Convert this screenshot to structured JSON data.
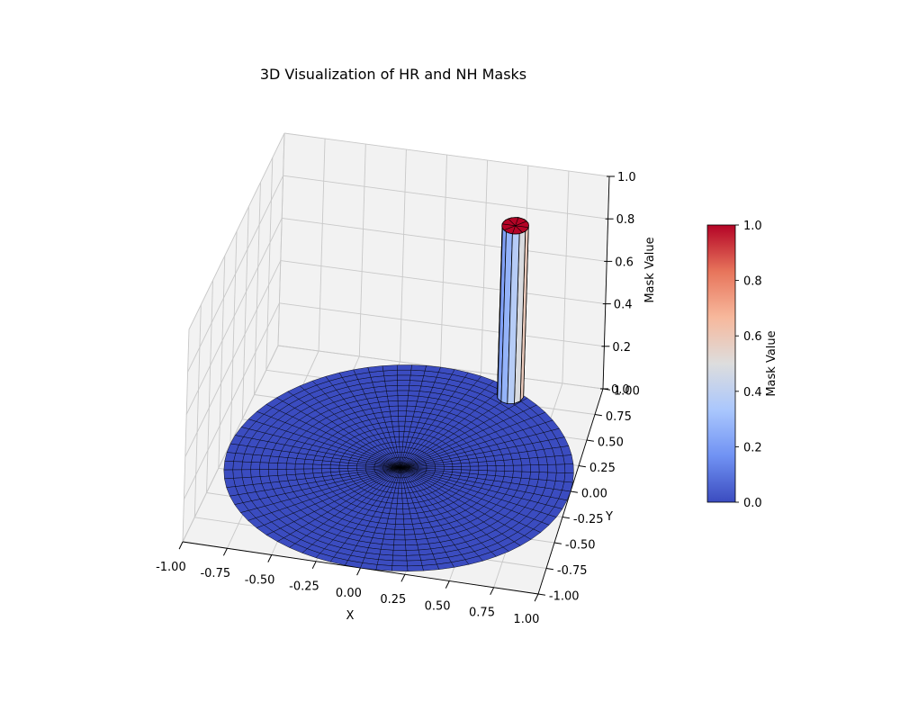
{
  "chart_data": {
    "type": "surface3d",
    "title": "3D Visualization of HR and NH Masks",
    "xlabel": "X",
    "ylabel": "Y",
    "zlabel": "Mask Value",
    "xlim": [
      -1.0,
      1.0
    ],
    "ylim": [
      -1.0,
      1.0
    ],
    "zlim": [
      0.0,
      1.0
    ],
    "x_ticks": [
      "-1.00",
      "-0.75",
      "-0.50",
      "-0.25",
      "0.00",
      "0.25",
      "0.50",
      "0.75",
      "1.00"
    ],
    "y_ticks": [
      "-1.00",
      "-0.75",
      "-0.50",
      "-0.25",
      "0.00",
      "0.25",
      "0.50",
      "0.75",
      "1.00"
    ],
    "z_ticks": [
      "0.0",
      "0.2",
      "0.4",
      "0.6",
      "0.8",
      "1.0"
    ],
    "grid": true,
    "colormap": "coolwarm",
    "colormap_colors": [
      "#3b4cc0",
      "#7092f3",
      "#aac7fd",
      "#dddddd",
      "#f7b89c",
      "#e7745b",
      "#b40426"
    ],
    "colorbar": {
      "label": "Mask Value",
      "range": [
        0.0,
        1.0
      ],
      "ticks": [
        "0.0",
        "0.2",
        "0.4",
        "0.6",
        "0.8",
        "1.0"
      ]
    },
    "surfaces": [
      {
        "shape": "disk",
        "center": [
          0.0,
          0.0
        ],
        "radius": 1.0,
        "z": 0.0,
        "value": 0.0
      },
      {
        "shape": "cylinder",
        "center": [
          0.47,
          0.82
        ],
        "radius": 0.08,
        "z_range": [
          0.0,
          0.8
        ],
        "value": 1.0
      }
    ]
  }
}
